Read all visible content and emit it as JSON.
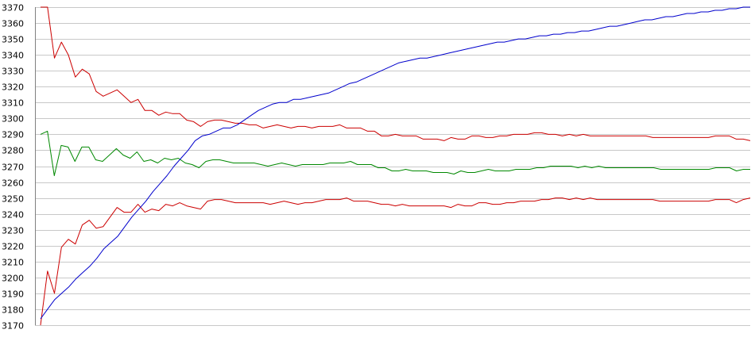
{
  "chart_data": {
    "type": "line",
    "title": "",
    "xlabel": "",
    "ylabel": "",
    "ylim": [
      3170,
      3370
    ],
    "y_ticks": [
      3170,
      3180,
      3190,
      3200,
      3210,
      3220,
      3230,
      3240,
      3250,
      3260,
      3270,
      3280,
      3290,
      3300,
      3310,
      3320,
      3330,
      3340,
      3350,
      3360,
      3370
    ],
    "grid": true,
    "legend": "none",
    "colors": {
      "upper": "#cc0000",
      "middle": "#008800",
      "lower": "#cc0000",
      "trend": "#0000cc",
      "grid": "#c8c8c8",
      "axis": "#808080"
    },
    "series": [
      {
        "key": "upper",
        "color": "#cc0000",
        "values": [
          3370,
          3370,
          3338,
          3348,
          3340,
          3326,
          3331,
          3328,
          3317,
          3314,
          3316,
          3318,
          3314,
          3310,
          3312,
          3305,
          3305,
          3302,
          3304,
          3303,
          3303,
          3299,
          3298,
          3295,
          3298,
          3299,
          3299,
          3298,
          3297,
          3297,
          3296,
          3296,
          3294,
          3295,
          3296,
          3295,
          3294,
          3295,
          3295,
          3294,
          3295,
          3295,
          3295,
          3296,
          3294,
          3294,
          3294,
          3292,
          3292,
          3289,
          3289,
          3290,
          3289,
          3289,
          3289,
          3287,
          3287,
          3287,
          3286,
          3288,
          3287,
          3287,
          3289,
          3289,
          3288,
          3288,
          3289,
          3289,
          3290,
          3290,
          3290,
          3291,
          3291,
          3290,
          3290,
          3289,
          3290,
          3289,
          3290,
          3289,
          3289,
          3289,
          3289,
          3289,
          3289,
          3289,
          3289,
          3289,
          3288,
          3288,
          3288,
          3288,
          3288,
          3288,
          3288,
          3288,
          3288,
          3289,
          3289,
          3289,
          3287,
          3287,
          3286
        ]
      },
      {
        "key": "middle",
        "color": "#008800",
        "values": [
          3290,
          3292,
          3264,
          3283,
          3282,
          3273,
          3282,
          3282,
          3274,
          3273,
          3277,
          3281,
          3277,
          3275,
          3279,
          3273,
          3274,
          3272,
          3275,
          3274,
          3275,
          3272,
          3271,
          3269,
          3273,
          3274,
          3274,
          3273,
          3272,
          3272,
          3272,
          3272,
          3271,
          3270,
          3271,
          3272,
          3271,
          3270,
          3271,
          3271,
          3271,
          3271,
          3272,
          3272,
          3272,
          3273,
          3271,
          3271,
          3271,
          3269,
          3269,
          3267,
          3267,
          3268,
          3267,
          3267,
          3267,
          3266,
          3266,
          3266,
          3265,
          3267,
          3266,
          3266,
          3267,
          3268,
          3267,
          3267,
          3267,
          3268,
          3268,
          3268,
          3269,
          3269,
          3270,
          3270,
          3270,
          3270,
          3269,
          3270,
          3269,
          3270,
          3269,
          3269,
          3269,
          3269,
          3269,
          3269,
          3269,
          3269,
          3268,
          3268,
          3268,
          3268,
          3268,
          3268,
          3268,
          3268,
          3269,
          3269,
          3269,
          3267,
          3268,
          3268
        ]
      },
      {
        "key": "lower",
        "color": "#cc0000",
        "values": [
          3170,
          3204,
          3190,
          3219,
          3224,
          3221,
          3233,
          3236,
          3231,
          3232,
          3238,
          3244,
          3241,
          3241,
          3246,
          3241,
          3243,
          3242,
          3246,
          3245,
          3247,
          3245,
          3244,
          3243,
          3248,
          3249,
          3249,
          3248,
          3247,
          3247,
          3247,
          3247,
          3247,
          3246,
          3247,
          3248,
          3247,
          3246,
          3247,
          3247,
          3248,
          3249,
          3249,
          3249,
          3250,
          3248,
          3248,
          3248,
          3247,
          3246,
          3246,
          3245,
          3246,
          3245,
          3245,
          3245,
          3245,
          3245,
          3245,
          3244,
          3246,
          3245,
          3245,
          3247,
          3247,
          3246,
          3246,
          3247,
          3247,
          3248,
          3248,
          3248,
          3249,
          3249,
          3250,
          3250,
          3249,
          3250,
          3249,
          3250,
          3249,
          3249,
          3249,
          3249,
          3249,
          3249,
          3249,
          3249,
          3249,
          3248,
          3248,
          3248,
          3248,
          3248,
          3248,
          3248,
          3248,
          3249,
          3249,
          3249,
          3247,
          3249,
          3250
        ]
      },
      {
        "key": "trend",
        "color": "#0000cc",
        "values": [
          3174,
          3180,
          3186,
          3190,
          3194,
          3199,
          3203,
          3207,
          3212,
          3218,
          3222,
          3226,
          3232,
          3238,
          3243,
          3248,
          3254,
          3259,
          3264,
          3270,
          3275,
          3280,
          3286,
          3289,
          3290,
          3292,
          3294,
          3294,
          3296,
          3299,
          3302,
          3305,
          3307,
          3309,
          3310,
          3310,
          3312,
          3312,
          3313,
          3314,
          3315,
          3316,
          3318,
          3320,
          3322,
          3323,
          3325,
          3327,
          3329,
          3331,
          3333,
          3335,
          3336,
          3337,
          3338,
          3338,
          3339,
          3340,
          3341,
          3342,
          3343,
          3344,
          3345,
          3346,
          3347,
          3348,
          3348,
          3349,
          3350,
          3350,
          3351,
          3352,
          3352,
          3353,
          3353,
          3354,
          3354,
          3355,
          3355,
          3356,
          3357,
          3358,
          3358,
          3359,
          3360,
          3361,
          3362,
          3362,
          3363,
          3364,
          3364,
          3365,
          3366,
          3366,
          3367,
          3367,
          3368,
          3368,
          3369,
          3369,
          3370,
          3370
        ]
      }
    ]
  }
}
